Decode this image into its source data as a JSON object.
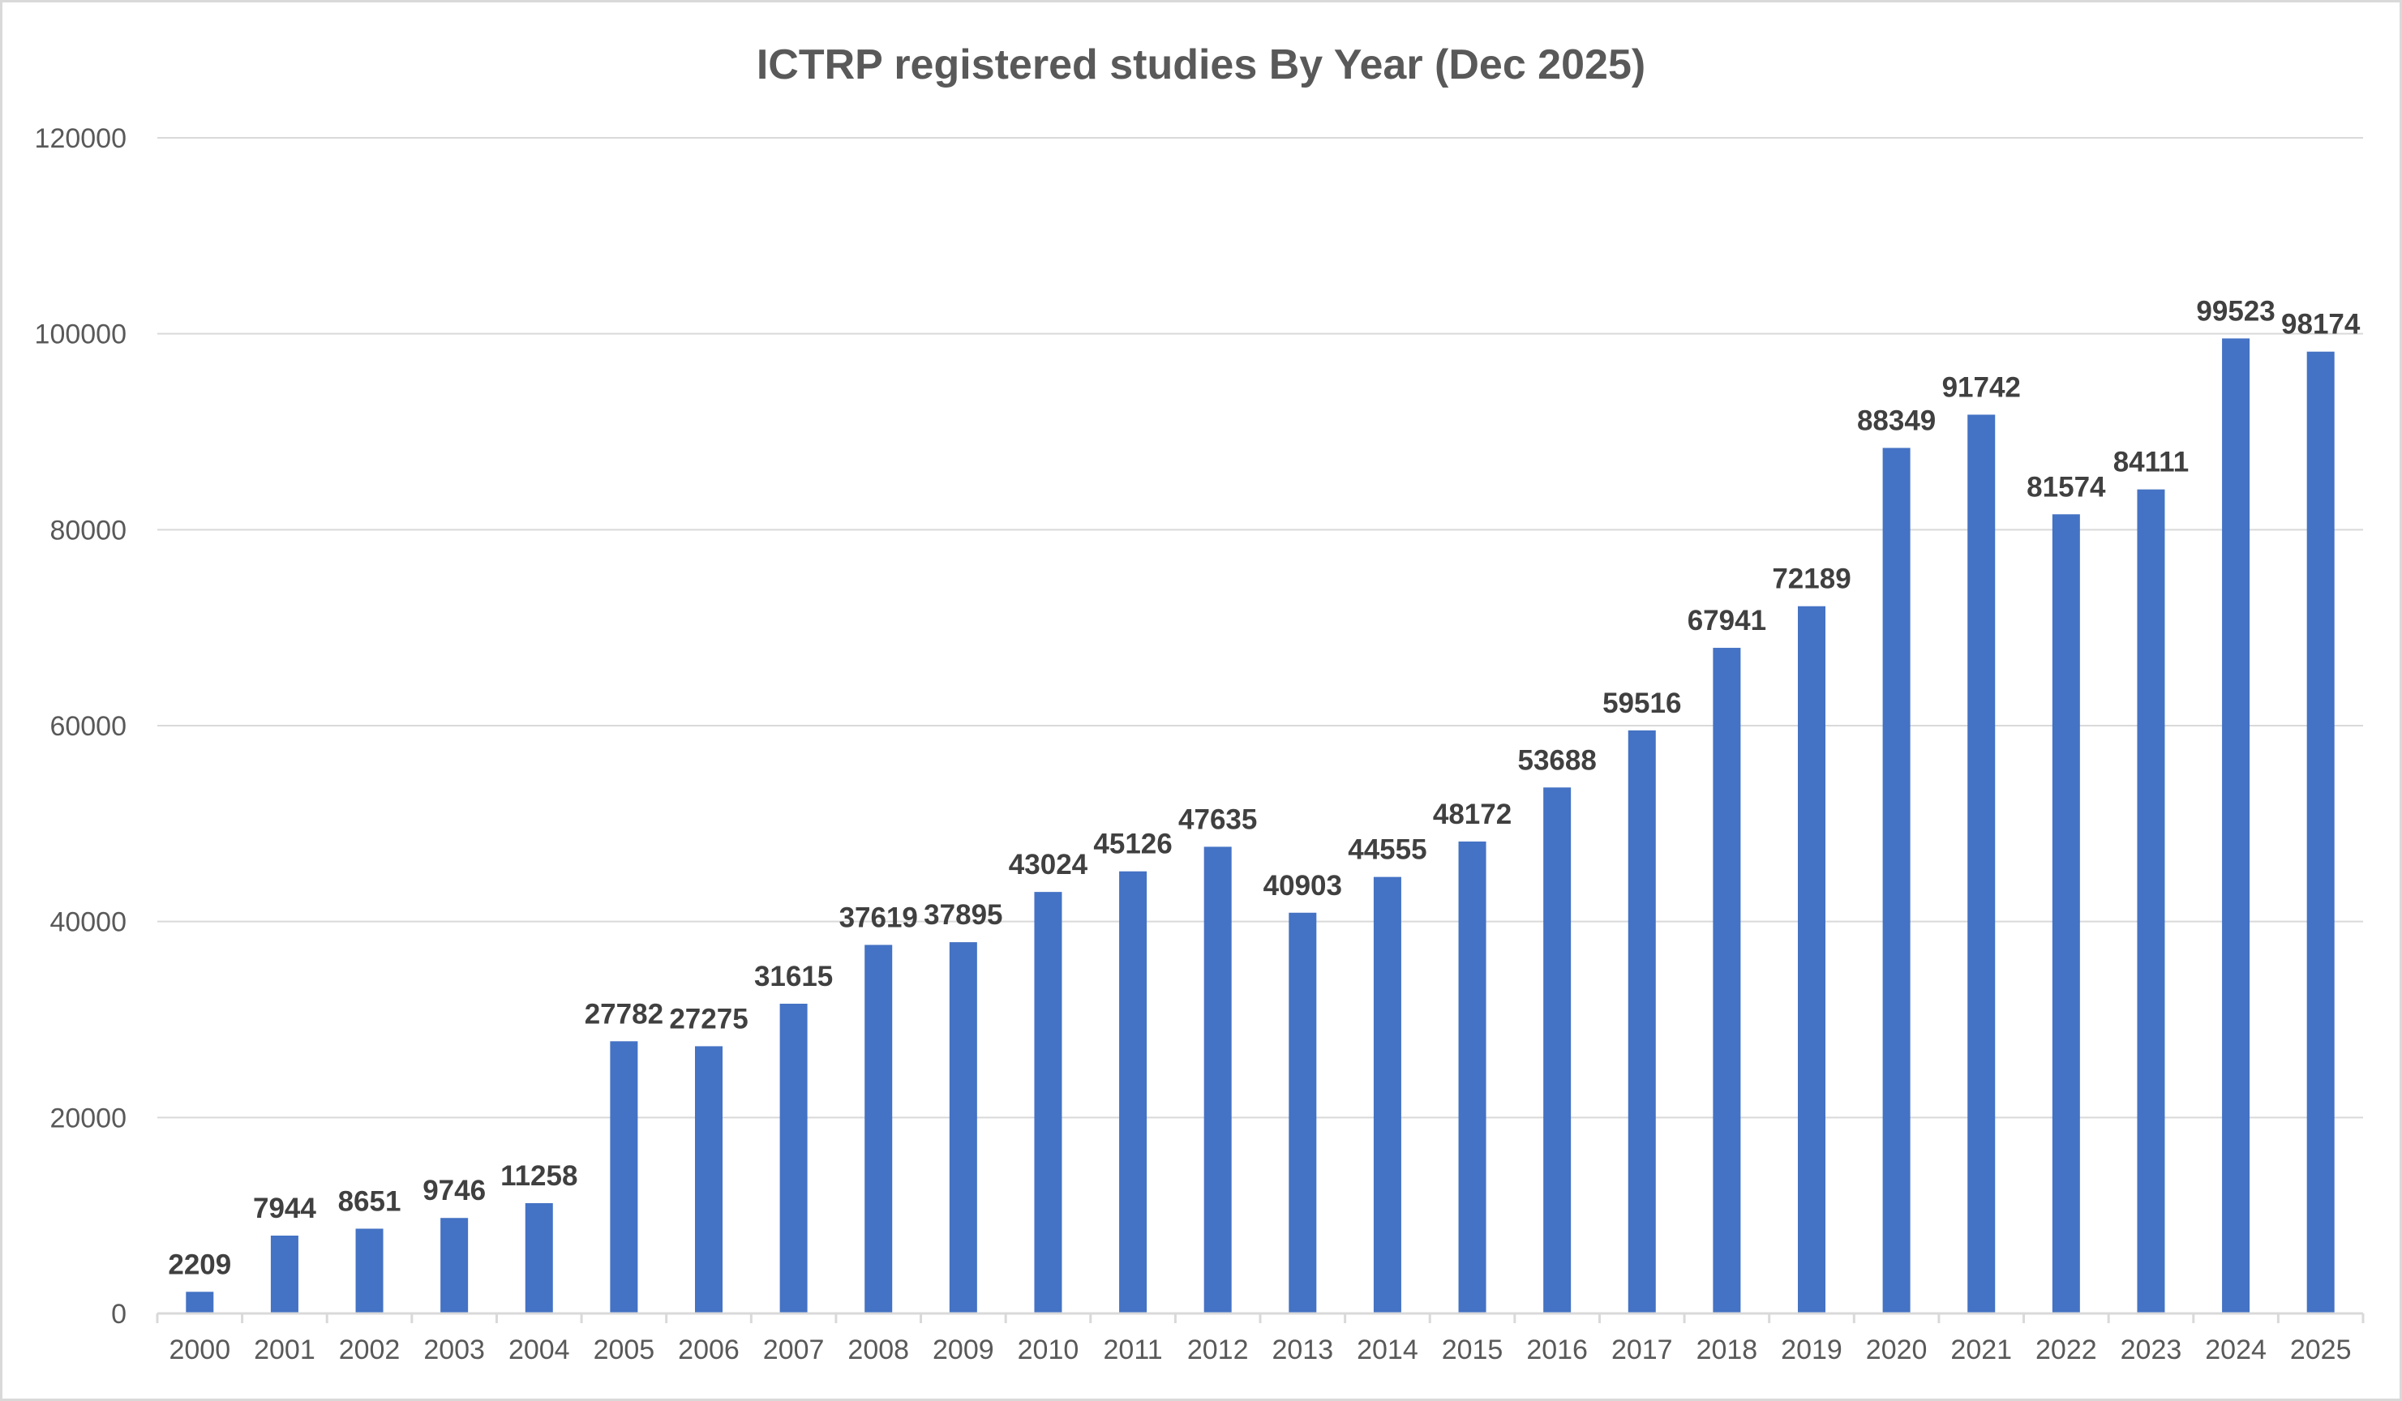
{
  "chart_data": {
    "type": "bar",
    "title": "ICTRP registered studies By Year (Dec 2025)",
    "xlabel": "",
    "ylabel": "",
    "ylim": [
      0,
      120000
    ],
    "yticks": [
      "0",
      "20000",
      "40000",
      "60000",
      "80000",
      "100000",
      "120000"
    ],
    "grid": true,
    "legend": "none",
    "bar_color": "#4472C4",
    "categories": [
      "2000",
      "2001",
      "2002",
      "2003",
      "2004",
      "2005",
      "2006",
      "2007",
      "2008",
      "2009",
      "2010",
      "2011",
      "2012",
      "2013",
      "2014",
      "2015",
      "2016",
      "2017",
      "2018",
      "2019",
      "2020",
      "2021",
      "2022",
      "2023",
      "2024",
      "2025"
    ],
    "values": [
      2209,
      7944,
      8651,
      9746,
      11258,
      27782,
      27275,
      31615,
      37619,
      37895,
      43024,
      45126,
      47635,
      40903,
      44555,
      48172,
      53688,
      59516,
      67941,
      72189,
      88349,
      91742,
      81574,
      84111,
      99523,
      98174
    ]
  }
}
